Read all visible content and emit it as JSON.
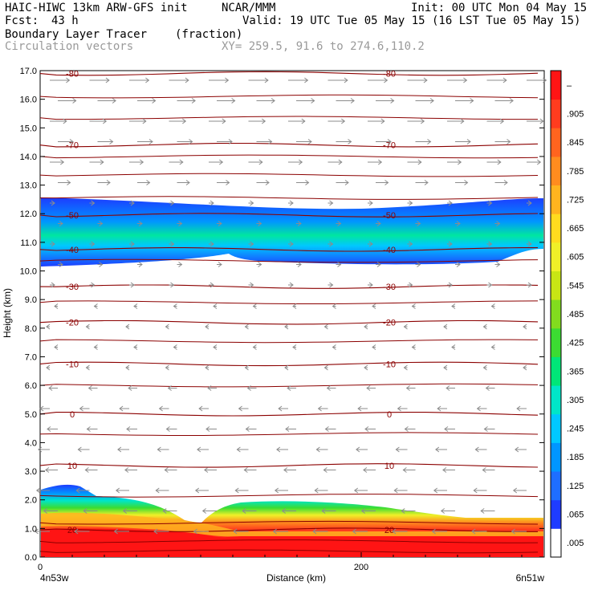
{
  "header": {
    "model": "HAIC-HIWC 13km ARW-GFS init",
    "org": "NCAR/MMM",
    "init": "Init: 00 UTC Mon 04 May 15",
    "fcst_label": "Fcst:",
    "fcst_value": "43 h",
    "valid": "Valid: 19 UTC Tue 05 May 15 (16 LST Tue 05 May 15)",
    "field": "Boundary Layer Tracer",
    "field_units": "(fraction)",
    "vectors": "Circulation vectors",
    "xy": "XY= 259.5, 91.6 to 274.6,110.2"
  },
  "chart_data": {
    "type": "heatmap",
    "title": "Boundary Layer Tracer",
    "units": "(fraction)",
    "xlabel": "Distance (km)",
    "ylabel": "Height (km)",
    "xlim": [
      0,
      314
    ],
    "ylim": [
      0,
      17
    ],
    "x_ticks": [
      {
        "value": 0,
        "label": "0"
      },
      {
        "value": 200,
        "label": "200"
      }
    ],
    "x_end_labels": {
      "left": "4n53w",
      "right": "6n51w"
    },
    "y_ticks": [
      {
        "value": 0,
        "label": "0.0"
      },
      {
        "value": 1,
        "label": "1.0"
      },
      {
        "value": 2,
        "label": "2.0"
      },
      {
        "value": 3,
        "label": "3.0"
      },
      {
        "value": 4,
        "label": "4.0"
      },
      {
        "value": 5,
        "label": "5.0"
      },
      {
        "value": 6,
        "label": "6.0"
      },
      {
        "value": 7,
        "label": "7.0"
      },
      {
        "value": 8,
        "label": "8.0"
      },
      {
        "value": 9,
        "label": "9.0"
      },
      {
        "value": 10,
        "label": "10.0"
      },
      {
        "value": 11,
        "label": "11.0"
      },
      {
        "value": 12,
        "label": "12.0"
      },
      {
        "value": 13,
        "label": "13.0"
      },
      {
        "value": 14,
        "label": "14.0"
      },
      {
        "value": 15,
        "label": "15.0"
      },
      {
        "value": 16,
        "label": "16.0"
      },
      {
        "value": 17,
        "label": "17.0"
      }
    ],
    "colorbar": {
      "labels": [
        ".005",
        ".065",
        ".125",
        ".185",
        ".245",
        ".305",
        ".365",
        ".425",
        ".485",
        ".545",
        ".605",
        ".665",
        ".725",
        ".785",
        ".845",
        ".905",
        "–"
      ],
      "colors": [
        "#ffffff",
        "#1e3cff",
        "#1e6eff",
        "#0096ff",
        "#00c8ff",
        "#00e6c8",
        "#00e678",
        "#3cdc32",
        "#82dc1e",
        "#c8e614",
        "#f0f028",
        "#ffdc1e",
        "#ffb41e",
        "#ff8c1e",
        "#ff641e",
        "#ff3c1e",
        "#ff1414"
      ]
    },
    "temperature_contours": [
      {
        "label": "-80",
        "height": 16.9
      },
      {
        "label": "-70",
        "height": 14.4
      },
      {
        "label": "-50",
        "height": 11.95
      },
      {
        "label": "-40",
        "height": 10.75
      },
      {
        "label": "-30",
        "height": 9.45
      },
      {
        "label": "-20",
        "height": 8.2
      },
      {
        "label": "-10",
        "height": 6.75
      },
      {
        "label": "0",
        "height": 5.0
      },
      {
        "label": "10",
        "height": 3.2
      },
      {
        "label": "20",
        "height": 0.95
      }
    ],
    "contour_color": "#8b0000",
    "annotations": [
      "Circulation vectors"
    ]
  }
}
